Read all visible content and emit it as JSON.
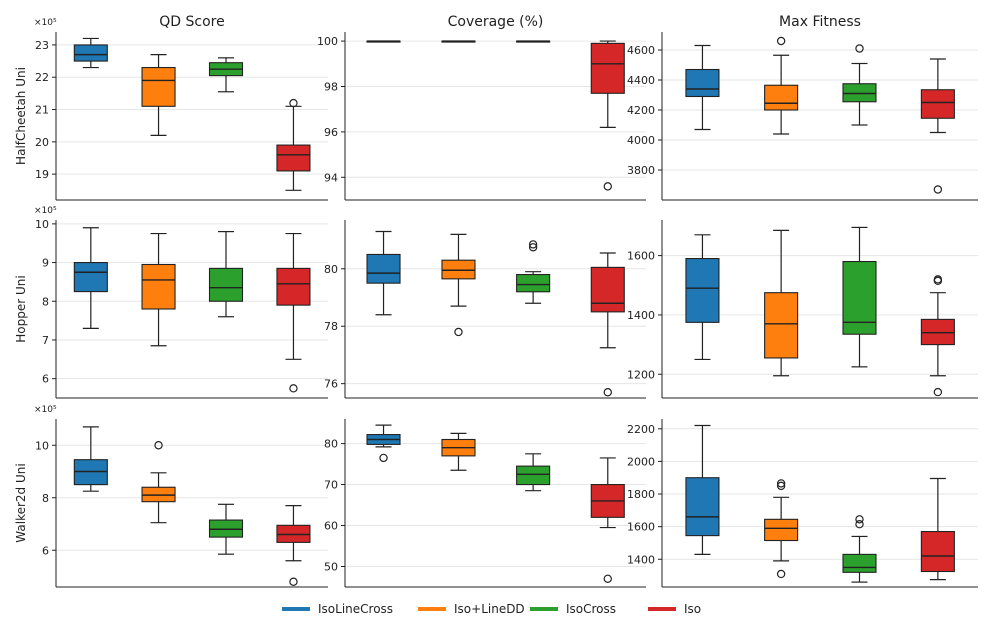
{
  "legend": [
    {
      "name": "IsoLineCross",
      "color": "#1f77b4"
    },
    {
      "name": "Iso+LineDD",
      "color": "#ff7f0e"
    },
    {
      "name": "IsoCross",
      "color": "#2ca02c"
    },
    {
      "name": "Iso",
      "color": "#d62728"
    }
  ],
  "chart_data": [
    {
      "type": "box",
      "env": "HalfCheetah Uni",
      "metric": "QD Score",
      "title": "QD Score",
      "ylabel": "HalfCheetah Uni",
      "multiplier": "×10⁵",
      "ylim": [
        18.2,
        23.4
      ],
      "ticks": [
        19,
        20,
        21,
        22,
        23
      ],
      "grid": true,
      "series": [
        {
          "name": "IsoLineCross",
          "whislo": 22.3,
          "q1": 22.5,
          "med": 22.7,
          "q3": 23.0,
          "whishi": 23.2,
          "fliers": []
        },
        {
          "name": "Iso+LineDD",
          "whislo": 20.2,
          "q1": 21.1,
          "med": 21.9,
          "q3": 22.3,
          "whishi": 22.7,
          "fliers": []
        },
        {
          "name": "IsoCross",
          "whislo": 21.55,
          "q1": 22.05,
          "med": 22.25,
          "q3": 22.45,
          "whishi": 22.6,
          "fliers": []
        },
        {
          "name": "Iso",
          "whislo": 18.5,
          "q1": 19.1,
          "med": 19.6,
          "q3": 19.9,
          "whishi": 21.1,
          "fliers": [
            21.2
          ]
        }
      ]
    },
    {
      "type": "box",
      "env": "HalfCheetah Uni",
      "metric": "Coverage (%)",
      "title": "Coverage (%)",
      "multiplier": "",
      "ylim": [
        93.0,
        100.4
      ],
      "ticks": [
        94,
        96,
        98,
        100
      ],
      "grid": true,
      "series": [
        {
          "name": "IsoLineCross",
          "whislo": 100,
          "q1": 100,
          "med": 100,
          "q3": 100,
          "whishi": 100,
          "fliers": []
        },
        {
          "name": "Iso+LineDD",
          "whislo": 100,
          "q1": 100,
          "med": 100,
          "q3": 100,
          "whishi": 100,
          "fliers": []
        },
        {
          "name": "IsoCross",
          "whislo": 100,
          "q1": 100,
          "med": 100,
          "q3": 100,
          "whishi": 100,
          "fliers": []
        },
        {
          "name": "Iso",
          "whislo": 96.2,
          "q1": 97.7,
          "med": 99.0,
          "q3": 99.9,
          "whishi": 100,
          "fliers": [
            93.6
          ]
        }
      ]
    },
    {
      "type": "box",
      "env": "HalfCheetah Uni",
      "metric": "Max Fitness",
      "title": "Max Fitness",
      "multiplier": "",
      "ylim": [
        3600,
        4720
      ],
      "ticks": [
        3800,
        4000,
        4200,
        4400,
        4600
      ],
      "grid": true,
      "series": [
        {
          "name": "IsoLineCross",
          "whislo": 4070,
          "q1": 4290,
          "med": 4340,
          "q3": 4470,
          "whishi": 4630,
          "fliers": []
        },
        {
          "name": "Iso+LineDD",
          "whislo": 4040,
          "q1": 4200,
          "med": 4245,
          "q3": 4365,
          "whishi": 4565,
          "fliers": [
            4660
          ]
        },
        {
          "name": "IsoCross",
          "whislo": 4100,
          "q1": 4255,
          "med": 4310,
          "q3": 4375,
          "whishi": 4510,
          "fliers": [
            4610
          ]
        },
        {
          "name": "Iso",
          "whislo": 4050,
          "q1": 4145,
          "med": 4250,
          "q3": 4335,
          "whishi": 4540,
          "fliers": [
            3670
          ]
        }
      ]
    },
    {
      "type": "box",
      "env": "Hopper Uni",
      "metric": "QD Score",
      "title": "",
      "ylabel": "Hopper Uni",
      "multiplier": "×10⁵",
      "ylim": [
        5.5,
        10.1
      ],
      "ticks": [
        6,
        7,
        8,
        9,
        10
      ],
      "grid": true,
      "series": [
        {
          "name": "IsoLineCross",
          "whislo": 7.3,
          "q1": 8.25,
          "med": 8.75,
          "q3": 9.0,
          "whishi": 9.9,
          "fliers": []
        },
        {
          "name": "Iso+LineDD",
          "whislo": 6.85,
          "q1": 7.8,
          "med": 8.55,
          "q3": 8.95,
          "whishi": 9.75,
          "fliers": []
        },
        {
          "name": "IsoCross",
          "whislo": 7.6,
          "q1": 8.0,
          "med": 8.35,
          "q3": 8.85,
          "whishi": 9.8,
          "fliers": []
        },
        {
          "name": "Iso",
          "whislo": 6.5,
          "q1": 7.9,
          "med": 8.45,
          "q3": 8.85,
          "whishi": 9.75,
          "fliers": [
            5.75
          ]
        }
      ]
    },
    {
      "type": "box",
      "env": "Hopper Uni",
      "metric": "Coverage (%)",
      "title": "",
      "multiplier": "",
      "ylim": [
        75.5,
        81.7
      ],
      "ticks": [
        76,
        78,
        80
      ],
      "grid": true,
      "series": [
        {
          "name": "IsoLineCross",
          "whislo": 78.4,
          "q1": 79.5,
          "med": 79.85,
          "q3": 80.5,
          "whishi": 81.3,
          "fliers": []
        },
        {
          "name": "Iso+LineDD",
          "whislo": 78.7,
          "q1": 79.65,
          "med": 79.95,
          "q3": 80.3,
          "whishi": 81.2,
          "fliers": [
            77.8
          ]
        },
        {
          "name": "IsoCross",
          "whislo": 78.8,
          "q1": 79.2,
          "med": 79.45,
          "q3": 79.8,
          "whishi": 79.9,
          "fliers": [
            80.75,
            80.85
          ]
        },
        {
          "name": "Iso",
          "whislo": 77.25,
          "q1": 78.5,
          "med": 78.8,
          "q3": 80.05,
          "whishi": 80.55,
          "fliers": [
            75.7
          ]
        }
      ]
    },
    {
      "type": "box",
      "env": "Hopper Uni",
      "metric": "Max Fitness",
      "title": "",
      "multiplier": "",
      "ylim": [
        1120,
        1720
      ],
      "ticks": [
        1200,
        1400,
        1600
      ],
      "grid": true,
      "series": [
        {
          "name": "IsoLineCross",
          "whislo": 1250,
          "q1": 1375,
          "med": 1490,
          "q3": 1590,
          "whishi": 1670,
          "fliers": []
        },
        {
          "name": "Iso+LineDD",
          "whislo": 1195,
          "q1": 1255,
          "med": 1370,
          "q3": 1475,
          "whishi": 1685,
          "fliers": []
        },
        {
          "name": "IsoCross",
          "whislo": 1225,
          "q1": 1335,
          "med": 1375,
          "q3": 1580,
          "whishi": 1695,
          "fliers": []
        },
        {
          "name": "Iso",
          "whislo": 1195,
          "q1": 1300,
          "med": 1340,
          "q3": 1385,
          "whishi": 1475,
          "fliers": [
            1140,
            1515,
            1520
          ]
        }
      ]
    },
    {
      "type": "box",
      "env": "Walker2d Uni",
      "metric": "QD Score",
      "title": "",
      "ylabel": "Walker2d Uni",
      "multiplier": "×10⁵",
      "ylim": [
        4.6,
        11.0
      ],
      "ticks": [
        6,
        8,
        10
      ],
      "grid": true,
      "series": [
        {
          "name": "IsoLineCross",
          "whislo": 8.25,
          "q1": 8.5,
          "med": 9.0,
          "q3": 9.45,
          "whishi": 10.7,
          "fliers": []
        },
        {
          "name": "Iso+LineDD",
          "whislo": 7.05,
          "q1": 7.85,
          "med": 8.1,
          "q3": 8.4,
          "whishi": 8.95,
          "fliers": [
            10.0
          ]
        },
        {
          "name": "IsoCross",
          "whislo": 5.85,
          "q1": 6.5,
          "med": 6.8,
          "q3": 7.15,
          "whishi": 7.75,
          "fliers": []
        },
        {
          "name": "Iso",
          "whislo": 5.6,
          "q1": 6.3,
          "med": 6.6,
          "q3": 6.95,
          "whishi": 7.7,
          "fliers": [
            4.8
          ]
        }
      ]
    },
    {
      "type": "box",
      "env": "Walker2d Uni",
      "metric": "Coverage (%)",
      "title": "",
      "multiplier": "",
      "ylim": [
        45,
        86
      ],
      "ticks": [
        50,
        60,
        70,
        80
      ],
      "grid": true,
      "series": [
        {
          "name": "IsoLineCross",
          "whislo": 79.2,
          "q1": 79.8,
          "med": 81.0,
          "q3": 82.2,
          "whishi": 84.5,
          "fliers": [
            76.5
          ]
        },
        {
          "name": "Iso+LineDD",
          "whislo": 73.5,
          "q1": 77.0,
          "med": 79.0,
          "q3": 81.0,
          "whishi": 82.5,
          "fliers": []
        },
        {
          "name": "IsoCross",
          "whislo": 68.5,
          "q1": 70.0,
          "med": 72.5,
          "q3": 74.5,
          "whishi": 77.5,
          "fliers": []
        },
        {
          "name": "Iso",
          "whislo": 59.5,
          "q1": 62.0,
          "med": 66.0,
          "q3": 70.0,
          "whishi": 76.5,
          "fliers": [
            47.0
          ]
        }
      ]
    },
    {
      "type": "box",
      "env": "Walker2d Uni",
      "metric": "Max Fitness",
      "title": "",
      "multiplier": "",
      "ylim": [
        1230,
        2260
      ],
      "ticks": [
        1400,
        1600,
        1800,
        2000,
        2200
      ],
      "grid": true,
      "series": [
        {
          "name": "IsoLineCross",
          "whislo": 1430,
          "q1": 1545,
          "med": 1660,
          "q3": 1900,
          "whishi": 2220,
          "fliers": []
        },
        {
          "name": "Iso+LineDD",
          "whislo": 1390,
          "q1": 1515,
          "med": 1590,
          "q3": 1645,
          "whishi": 1780,
          "fliers": [
            1310,
            1850,
            1865
          ]
        },
        {
          "name": "IsoCross",
          "whislo": 1260,
          "q1": 1320,
          "med": 1350,
          "q3": 1430,
          "whishi": 1540,
          "fliers": [
            1615,
            1645
          ]
        },
        {
          "name": "Iso",
          "whislo": 1275,
          "q1": 1325,
          "med": 1420,
          "q3": 1570,
          "whishi": 1895,
          "fliers": []
        }
      ]
    }
  ]
}
